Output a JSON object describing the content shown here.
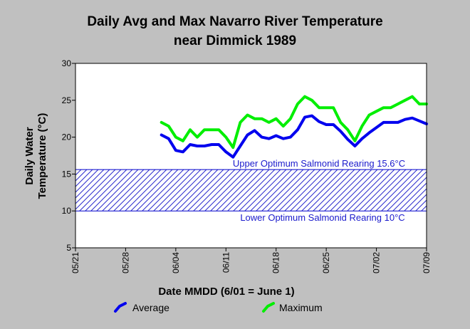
{
  "chart_data": {
    "type": "line",
    "title": [
      "Daily Avg and Max Navarro River Temperature",
      "near Dimmick 1989"
    ],
    "xlabel": "Date MMDD (6/01 = June 1)",
    "ylabel": [
      "Daily Water",
      "Temperature (°C)"
    ],
    "ylim": [
      5,
      30
    ],
    "yticks": [
      5,
      10,
      15,
      20,
      25,
      30
    ],
    "xlim": [
      "05/21",
      "07/09"
    ],
    "xticks": [
      {
        "date": "05/21",
        "label": "05/21"
      },
      {
        "date": "05/28",
        "label": "05/28"
      },
      {
        "date": "06/04",
        "label": "06/04"
      },
      {
        "date": "06/11",
        "label": "06/11"
      },
      {
        "date": "06/18",
        "label": "06/18"
      },
      {
        "date": "06/25",
        "label": "06/25"
      },
      {
        "date": "07/02",
        "label": "07/02"
      },
      {
        "date": "07/09",
        "label": "07/09"
      }
    ],
    "grid": false,
    "legend_position": "bottom",
    "band": {
      "lower": 10,
      "upper": 15.6,
      "upper_label": "Upper Optimum Salmonid Rearing 15.6°C",
      "lower_label": "Lower Optimum Salmonid Rearing 10°C",
      "color": "#0000cc"
    },
    "series": [
      {
        "name": "Average",
        "color": "#0000ee",
        "points": [
          [
            "06/02",
            20.3
          ],
          [
            "06/03",
            19.8
          ],
          [
            "06/04",
            18.2
          ],
          [
            "06/05",
            18.0
          ],
          [
            "06/06",
            19.0
          ],
          [
            "06/07",
            18.8
          ],
          [
            "06/08",
            18.8
          ],
          [
            "06/09",
            19.0
          ],
          [
            "06/10",
            19.0
          ],
          [
            "06/11",
            18.0
          ],
          [
            "06/12",
            17.3
          ],
          [
            "06/13",
            18.8
          ],
          [
            "06/14",
            20.3
          ],
          [
            "06/15",
            20.9
          ],
          [
            "06/16",
            20.0
          ],
          [
            "06/17",
            19.8
          ],
          [
            "06/18",
            20.2
          ],
          [
            "06/19",
            19.8
          ],
          [
            "06/20",
            20.0
          ],
          [
            "06/21",
            21.0
          ],
          [
            "06/22",
            22.7
          ],
          [
            "06/23",
            22.9
          ],
          [
            "06/24",
            22.1
          ],
          [
            "06/25",
            21.7
          ],
          [
            "06/26",
            21.7
          ],
          [
            "06/27",
            20.8
          ],
          [
            "06/28",
            19.7
          ],
          [
            "06/29",
            18.8
          ],
          [
            "06/30",
            19.8
          ],
          [
            "07/01",
            20.6
          ],
          [
            "07/02",
            21.3
          ],
          [
            "07/03",
            22.0
          ],
          [
            "07/04",
            22.0
          ],
          [
            "07/05",
            22.0
          ],
          [
            "07/06",
            22.4
          ],
          [
            "07/07",
            22.6
          ],
          [
            "07/08",
            22.2
          ],
          [
            "07/09",
            21.8
          ]
        ]
      },
      {
        "name": "Maximum",
        "color": "#00ee00",
        "points": [
          [
            "06/02",
            22.0
          ],
          [
            "06/03",
            21.5
          ],
          [
            "06/04",
            20.0
          ],
          [
            "06/05",
            19.5
          ],
          [
            "06/06",
            21.0
          ],
          [
            "06/07",
            20.0
          ],
          [
            "06/08",
            21.0
          ],
          [
            "06/09",
            21.0
          ],
          [
            "06/10",
            21.0
          ],
          [
            "06/11",
            20.0
          ],
          [
            "06/12",
            18.6
          ],
          [
            "06/13",
            22.0
          ],
          [
            "06/14",
            23.0
          ],
          [
            "06/15",
            22.5
          ],
          [
            "06/16",
            22.5
          ],
          [
            "06/17",
            22.0
          ],
          [
            "06/18",
            22.5
          ],
          [
            "06/19",
            21.5
          ],
          [
            "06/20",
            22.5
          ],
          [
            "06/21",
            24.5
          ],
          [
            "06/22",
            25.5
          ],
          [
            "06/23",
            25.0
          ],
          [
            "06/24",
            24.0
          ],
          [
            "06/25",
            24.0
          ],
          [
            "06/26",
            24.0
          ],
          [
            "06/27",
            22.0
          ],
          [
            "06/28",
            21.0
          ],
          [
            "06/29",
            19.5
          ],
          [
            "06/30",
            21.5
          ],
          [
            "07/01",
            23.0
          ],
          [
            "07/02",
            23.5
          ],
          [
            "07/03",
            24.0
          ],
          [
            "07/04",
            24.0
          ],
          [
            "07/05",
            24.5
          ],
          [
            "07/06",
            25.0
          ],
          [
            "07/07",
            25.5
          ],
          [
            "07/08",
            24.5
          ],
          [
            "07/09",
            24.5
          ]
        ]
      }
    ]
  }
}
